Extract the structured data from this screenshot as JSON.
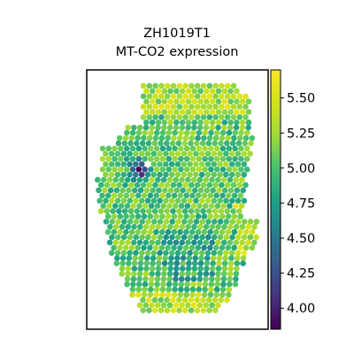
{
  "chart_data": {
    "type": "scatter",
    "subtype": "spatial-hexbin",
    "title": "ZH1019T1",
    "subtitle": "MT-CO2 expression",
    "xlabel": "",
    "ylabel": "",
    "colormap": "viridis",
    "colorbar": {
      "range": [
        3.85,
        5.7
      ],
      "ticks": [
        4.0,
        4.25,
        4.5,
        4.75,
        5.0,
        5.25,
        5.5
      ],
      "tick_labels": [
        "4.00",
        "4.25",
        "4.50",
        "4.75",
        "5.00",
        "5.25",
        "5.50"
      ]
    },
    "grid": false,
    "legend": "colorbar-right",
    "spot_values_summary": {
      "min": 3.9,
      "max": 5.65,
      "typical": 5.1,
      "low_cluster_region": "upper-left",
      "high_regions": [
        "top",
        "bottom",
        "right"
      ]
    }
  }
}
